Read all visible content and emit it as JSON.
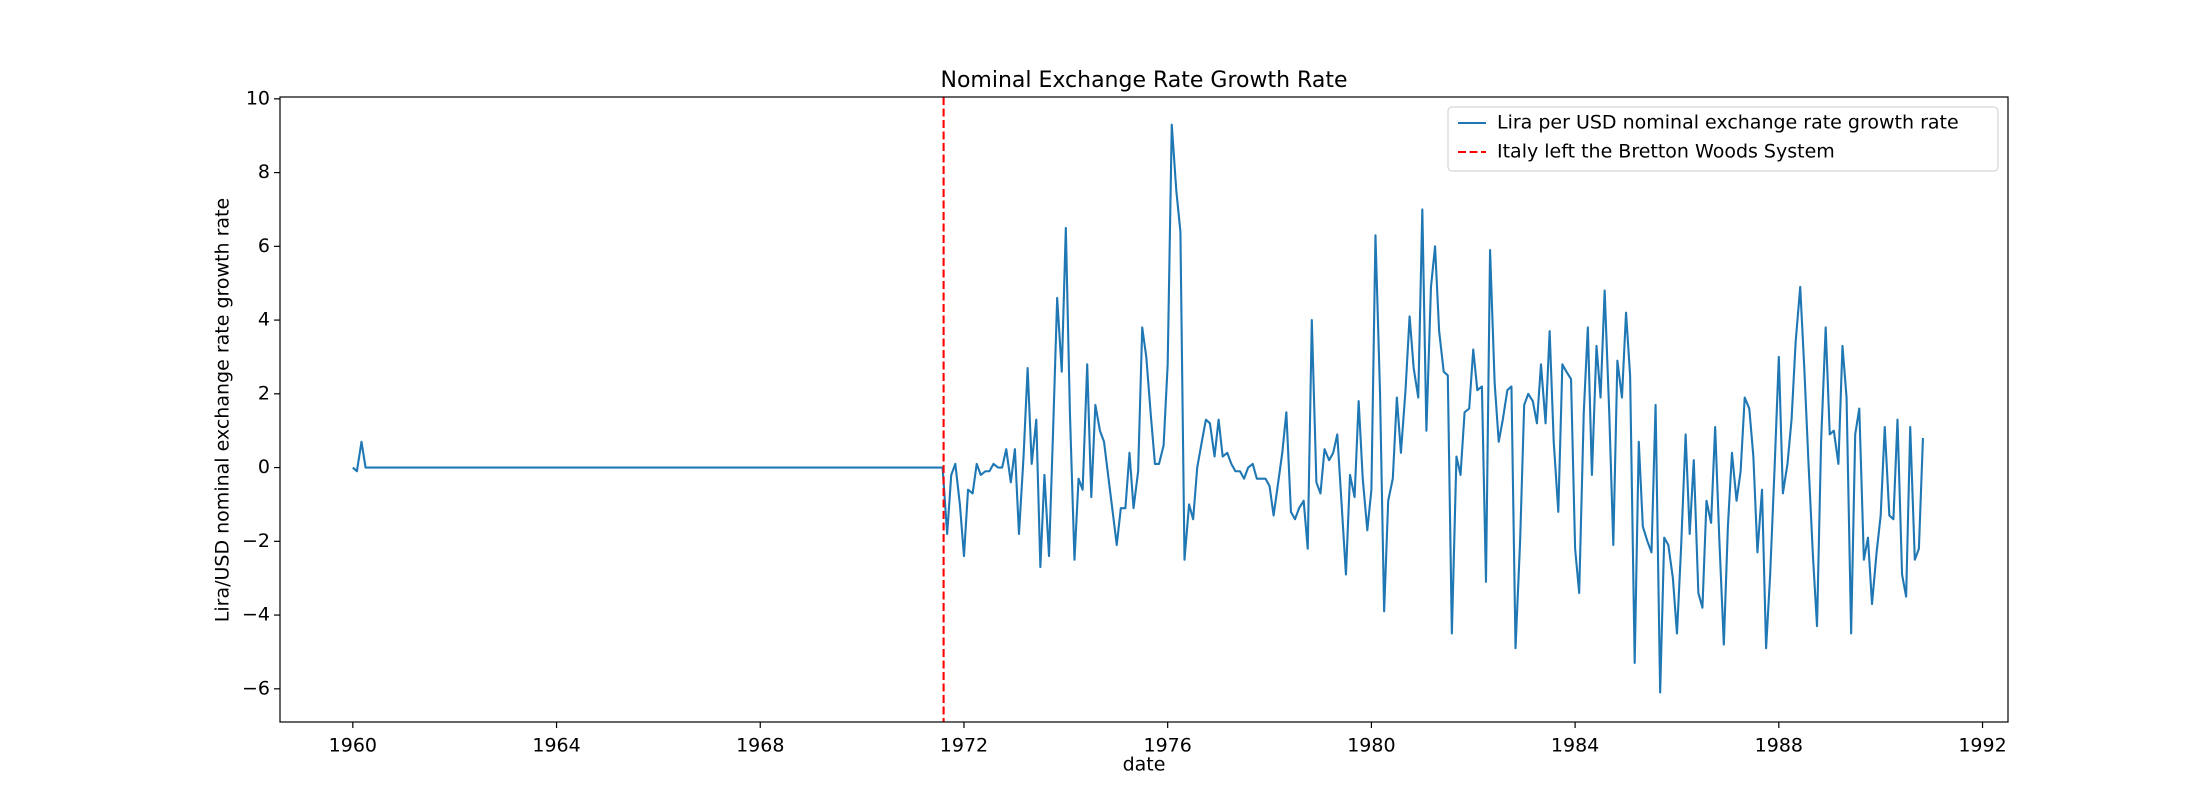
{
  "chart_data": {
    "type": "line",
    "title": "Nominal Exchange Rate Growth Rate",
    "x_label": "date",
    "y_label": "Lira/USD nominal exchange rate growth rate",
    "xlim": [
      1958.57,
      1992.5
    ],
    "ylim": [
      -6.9,
      10.05
    ],
    "xticks": [
      1960,
      1964,
      1968,
      1972,
      1976,
      1980,
      1984,
      1988,
      1992
    ],
    "yticks": [
      {
        "value": -6,
        "label": "−6"
      },
      {
        "value": -4,
        "label": "−4"
      },
      {
        "value": -2,
        "label": "−2"
      },
      0,
      2,
      4,
      6,
      8,
      10
    ],
    "legend": "upper right",
    "x": [
      1960.0,
      1960.08,
      1960.17,
      1960.25,
      1971.58,
      1971.67,
      1971.75,
      1971.83,
      1971.92,
      1972.0,
      1972.08,
      1972.17,
      1972.25,
      1972.33,
      1972.42,
      1972.5,
      1972.58,
      1972.67,
      1972.75,
      1972.83,
      1972.92,
      1973.0,
      1973.08,
      1973.17,
      1973.25,
      1973.33,
      1973.42,
      1973.5,
      1973.58,
      1973.67,
      1973.75,
      1973.83,
      1973.92,
      1974.0,
      1974.08,
      1974.17,
      1974.25,
      1974.33,
      1974.42,
      1974.5,
      1974.58,
      1974.67,
      1974.75,
      1974.83,
      1974.92,
      1975.0,
      1975.08,
      1975.17,
      1975.25,
      1975.33,
      1975.42,
      1975.5,
      1975.58,
      1975.67,
      1975.75,
      1975.83,
      1975.92,
      1976.0,
      1976.08,
      1976.17,
      1976.25,
      1976.33,
      1976.42,
      1976.5,
      1976.58,
      1976.67,
      1976.75,
      1976.83,
      1976.92,
      1977.0,
      1977.08,
      1977.17,
      1977.25,
      1977.33,
      1977.42,
      1977.5,
      1977.58,
      1977.67,
      1977.75,
      1977.83,
      1977.92,
      1978.0,
      1978.08,
      1978.17,
      1978.25,
      1978.33,
      1978.42,
      1978.5,
      1978.58,
      1978.67,
      1978.75,
      1978.83,
      1978.92,
      1979.0,
      1979.08,
      1979.17,
      1979.25,
      1979.33,
      1979.42,
      1979.5,
      1979.58,
      1979.67,
      1979.75,
      1979.83,
      1979.92,
      1980.0,
      1980.08,
      1980.17,
      1980.25,
      1980.33,
      1980.42,
      1980.5,
      1980.58,
      1980.67,
      1980.75,
      1980.83,
      1980.92,
      1981.0,
      1981.08,
      1981.17,
      1981.25,
      1981.33,
      1981.42,
      1981.5,
      1981.58,
      1981.67,
      1981.75,
      1981.83,
      1981.92,
      1982.0,
      1982.08,
      1982.17,
      1982.25,
      1982.33,
      1982.42,
      1982.5,
      1982.58,
      1982.67,
      1982.75,
      1982.83,
      1982.92,
      1983.0,
      1983.08,
      1983.17,
      1983.25,
      1983.33,
      1983.42,
      1983.5,
      1983.58,
      1983.67,
      1983.75,
      1983.83,
      1983.92,
      1984.0,
      1984.08,
      1984.17,
      1984.25,
      1984.33,
      1984.42,
      1984.5,
      1984.58,
      1984.67,
      1984.75,
      1984.83,
      1984.92,
      1985.0,
      1985.08,
      1985.17,
      1985.25,
      1985.33,
      1985.42,
      1985.5,
      1985.58,
      1985.67,
      1985.75,
      1985.83,
      1985.92,
      1986.0,
      1986.08,
      1986.17,
      1986.25,
      1986.33,
      1986.42,
      1986.5,
      1986.58,
      1986.67,
      1986.75,
      1986.83,
      1986.92,
      1987.0,
      1987.08,
      1987.17,
      1987.25,
      1987.33,
      1987.42,
      1987.5,
      1987.58,
      1987.67,
      1987.75,
      1987.83,
      1987.92,
      1988.0,
      1988.08,
      1988.17,
      1988.25,
      1988.33,
      1988.42,
      1988.5,
      1988.58,
      1988.67,
      1988.75,
      1988.83,
      1988.92,
      1989.0,
      1989.08,
      1989.17,
      1989.25,
      1989.33,
      1989.42,
      1989.5,
      1989.58,
      1989.67,
      1989.75,
      1989.83,
      1989.92,
      1990.0,
      1990.08,
      1990.17,
      1990.25,
      1990.33,
      1990.42,
      1990.5,
      1990.58,
      1990.67,
      1990.75,
      1990.83
    ],
    "series": [
      {
        "name": "Lira per USD nominal exchange rate growth rate",
        "color": "#1f77b4",
        "values": [
          0,
          -0.1,
          0.7,
          0,
          0,
          -1.8,
          -0.2,
          0.1,
          -1.0,
          -2.4,
          -0.6,
          -0.7,
          0.1,
          -0.2,
          -0.1,
          -0.1,
          0.1,
          0.0,
          0.0,
          0.5,
          -0.4,
          0.5,
          -1.8,
          0.3,
          2.7,
          0.1,
          1.3,
          -2.7,
          -0.2,
          -2.4,
          1.0,
          4.6,
          2.6,
          6.5,
          1.5,
          -2.5,
          -0.3,
          -0.6,
          2.8,
          -0.8,
          1.7,
          1.0,
          0.7,
          -0.2,
          -1.2,
          -2.1,
          -1.1,
          -1.1,
          0.4,
          -1.1,
          -0.1,
          3.8,
          3.0,
          1.4,
          0.1,
          0.1,
          0.6,
          2.8,
          9.3,
          7.5,
          6.4,
          -2.5,
          -1.0,
          -1.4,
          0.0,
          0.7,
          1.3,
          1.2,
          0.3,
          1.3,
          0.3,
          0.4,
          0.1,
          -0.1,
          -0.1,
          -0.3,
          0.0,
          0.1,
          -0.3,
          -0.3,
          -0.3,
          -0.5,
          -1.3,
          -0.4,
          0.4,
          1.5,
          -1.2,
          -1.4,
          -1.1,
          -0.9,
          -2.2,
          4.0,
          -0.4,
          -0.7,
          0.5,
          0.2,
          0.4,
          0.9,
          -1.1,
          -2.9,
          -0.2,
          -0.8,
          1.8,
          -0.3,
          -1.7,
          -0.6,
          6.3,
          2.0,
          -3.9,
          -0.9,
          -0.3,
          1.9,
          0.4,
          2.1,
          4.1,
          2.7,
          1.9,
          7.0,
          1.0,
          4.9,
          6.0,
          3.7,
          2.6,
          2.5,
          -4.5,
          0.3,
          -0.2,
          1.5,
          1.6,
          3.2,
          2.1,
          2.2,
          -3.1,
          5.9,
          2.3,
          0.7,
          1.3,
          2.1,
          2.2,
          -4.9,
          -2.0,
          1.7,
          2.0,
          1.8,
          1.2,
          2.8,
          1.2,
          3.7,
          0.7,
          -1.2,
          2.8,
          2.6,
          2.4,
          -2.2,
          -3.4,
          1.5,
          3.8,
          -0.2,
          3.3,
          1.9,
          4.8,
          1.5,
          -2.1,
          2.9,
          1.9,
          4.2,
          2.5,
          -5.3,
          0.7,
          -1.6,
          -2.0,
          -2.3,
          1.7,
          -6.1,
          -1.9,
          -2.1,
          -3.0,
          -4.5,
          -2.2,
          0.9,
          -1.8,
          0.2,
          -3.4,
          -3.8,
          -0.9,
          -1.5,
          1.1,
          -1.9,
          -4.8,
          -1.6,
          0.4,
          -0.9,
          -0.1,
          1.9,
          1.6,
          0.3,
          -2.3,
          -0.6,
          -4.9,
          -2.9,
          0.1,
          3.0,
          -0.7,
          0.1,
          1.3,
          3.4,
          4.9,
          2.7,
          0.2,
          -2.4,
          -4.3,
          0.7,
          3.8,
          0.9,
          1.0,
          0.1,
          3.3,
          1.9,
          -4.5,
          0.9,
          1.6,
          -2.5,
          -1.9,
          -3.7,
          -2.3,
          -1.3,
          1.1,
          -1.3,
          -1.4,
          1.3,
          -2.9,
          -3.5,
          1.1,
          -2.5,
          -2.2,
          0.8
        ]
      }
    ],
    "vline": {
      "name": "Italy left the Bretton Woods System",
      "x": 1971.6,
      "color": "#ff0000"
    }
  }
}
